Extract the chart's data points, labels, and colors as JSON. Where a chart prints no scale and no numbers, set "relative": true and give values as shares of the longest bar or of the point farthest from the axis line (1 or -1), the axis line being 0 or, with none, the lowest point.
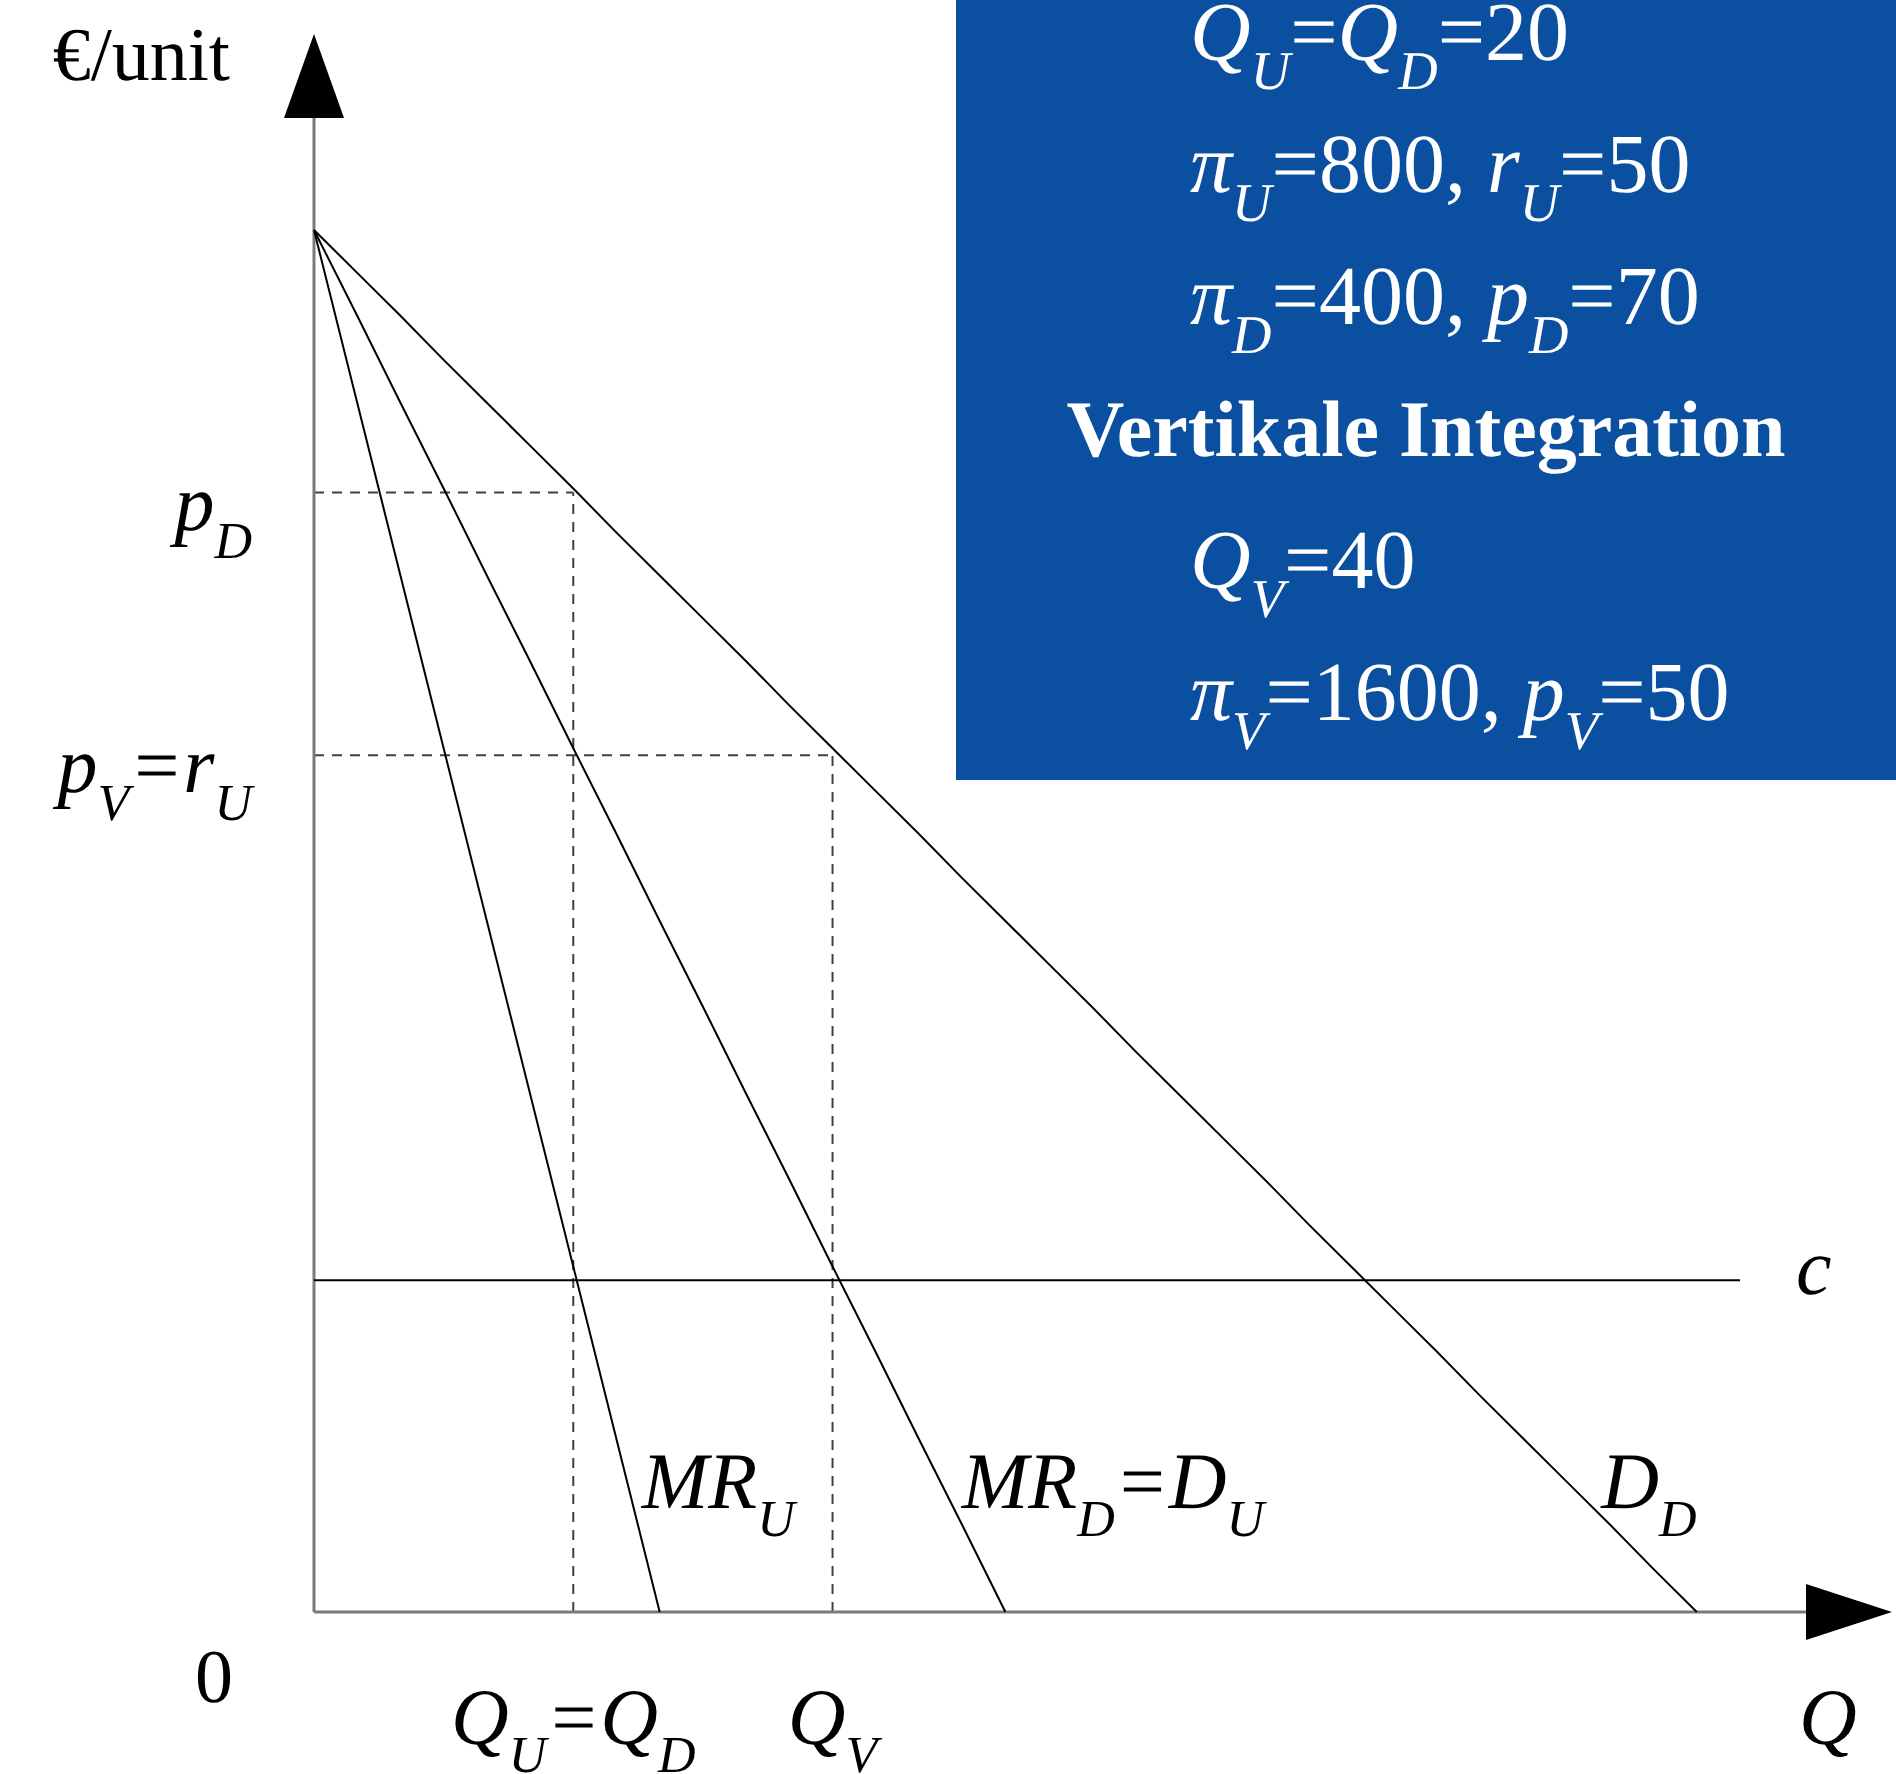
{
  "chart_data": {
    "type": "line",
    "relative": true,
    "xlabel": "Q",
    "ylabel": "€/unit",
    "legend": false,
    "marker": "none",
    "categories": [
      null,
      null,
      null,
      null,
      null,
      null,
      "Q$_{U}$=Q$_{D}$",
      null,
      null,
      null,
      null,
      null,
      "Q$_{V}$",
      null,
      null,
      null,
      null,
      null,
      null,
      null,
      null,
      null,
      null,
      null,
      null,
      null,
      null,
      null,
      null,
      null,
      null,
      null,
      null,
      null
    ],
    "series": [
      {
        "name": "MR$_{U}$",
        "color": "#000000",
        "values": [
          1,
          0.875,
          0.75,
          0.625,
          0.5,
          0.375,
          0.25,
          0.125,
          0,
          null,
          null,
          null,
          null,
          null,
          null,
          null,
          null,
          null,
          null,
          null,
          null,
          null,
          null,
          null,
          null,
          null,
          null,
          null,
          null,
          null,
          null,
          null,
          null,
          null
        ]
      },
      {
        "name": "MR$_{D}$=D$_{U}$",
        "color": "#000000",
        "values": [
          1,
          0.938,
          0.875,
          0.813,
          0.75,
          0.688,
          0.625,
          0.563,
          0.5,
          0.438,
          0.375,
          0.313,
          0.25,
          0.188,
          0.125,
          0.063,
          0,
          null,
          null,
          null,
          null,
          null,
          null,
          null,
          null,
          null,
          null,
          null,
          null,
          null,
          null,
          null,
          null,
          null
        ]
      },
      {
        "name": "D$_{D}$",
        "color": "#000000",
        "values": [
          1,
          0.969,
          0.938,
          0.906,
          0.875,
          0.844,
          0.813,
          0.781,
          0.75,
          0.719,
          0.688,
          0.656,
          0.625,
          0.594,
          0.563,
          0.531,
          0.5,
          0.469,
          0.438,
          0.406,
          0.375,
          0.344,
          0.313,
          0.281,
          0.25,
          0.219,
          0.188,
          0.156,
          0.125,
          0.094,
          0.063,
          0.031,
          0,
          null
        ]
      },
      {
        "name": "c",
        "color": "#000000",
        "values": [
          0.24,
          0.24,
          0.24,
          0.24,
          0.24,
          0.24,
          0.24,
          0.24,
          0.24,
          0.24,
          0.24,
          0.24,
          0.24,
          0.24,
          0.24,
          0.24,
          0.24,
          0.24,
          0.24,
          0.24,
          0.24,
          0.24,
          0.24,
          0.24,
          0.24,
          0.24,
          0.24,
          0.24,
          0.24,
          0.24,
          0.24,
          0.24,
          0.24,
          0.24
        ]
      }
    ],
    "ref_lines": [
      {
        "axis": "y",
        "value": 0.81,
        "label": "p$_{D}$",
        "color": "#404040",
        "line_style": "dashed"
      },
      {
        "axis": "y",
        "value": 0.62,
        "label": "p$_{V}$=r$_{U}$",
        "color": "#404040",
        "line_style": "dashed"
      },
      {
        "axis": "x",
        "value": "Q$_{U}$=Q$_{D}$",
        "color": "#404040",
        "line_style": "dashed"
      },
      {
        "axis": "x",
        "value": "Q$_{V}$",
        "color": "#404040",
        "line_style": "dashed"
      }
    ],
    "annotations": [
      "0",
      "Q$_{U}$=Q$_{D}$=20",
      "π$_{U}$=800, r$_{U}$=50",
      "π$_{D}$=400, p$_{D}$=70",
      "Vertikale Integration",
      "Q$_{V}$=40",
      "π$_{V}$=1600, p$_{V}$=50"
    ]
  }
}
